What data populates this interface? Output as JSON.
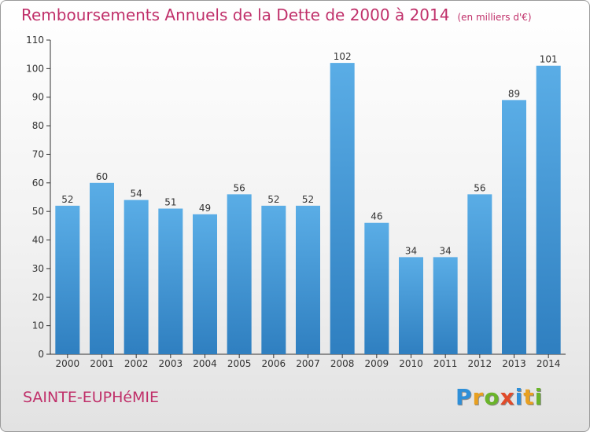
{
  "chart_data": {
    "type": "bar",
    "title": "Remboursements Annuels de la Dette de 2000 à 2014",
    "subtitle": "(en milliers d'€)",
    "categories": [
      "2000",
      "2001",
      "2002",
      "2003",
      "2004",
      "2005",
      "2006",
      "2007",
      "2008",
      "2009",
      "2010",
      "2011",
      "2012",
      "2013",
      "2014"
    ],
    "values": [
      52,
      60,
      54,
      51,
      49,
      56,
      52,
      52,
      102,
      46,
      34,
      34,
      56,
      89,
      101
    ],
    "ylim": [
      0,
      110
    ],
    "yticks": [
      0,
      10,
      20,
      30,
      40,
      50,
      60,
      70,
      80,
      90,
      100,
      110
    ],
    "grid": false,
    "legend": "none",
    "xlabel": "",
    "ylabel": "",
    "bar_color_top": "#5aade6",
    "bar_color_bottom": "#2f7fc0"
  },
  "footer": {
    "commune": "SAINTE-EUPHéMIE",
    "brand_letters": [
      {
        "char": "P",
        "color": "#2f8fd8"
      },
      {
        "char": "r",
        "color": "#e8a020"
      },
      {
        "char": "o",
        "color": "#6ab42a"
      },
      {
        "char": "x",
        "color": "#e14b2a"
      },
      {
        "char": "i",
        "color": "#2f8fd8"
      },
      {
        "char": "t",
        "color": "#e8a020"
      },
      {
        "char": "i",
        "color": "#6ab42a"
      }
    ]
  },
  "colors": {
    "title": "#c0306a",
    "axis": "#333333",
    "label": "#333333"
  }
}
